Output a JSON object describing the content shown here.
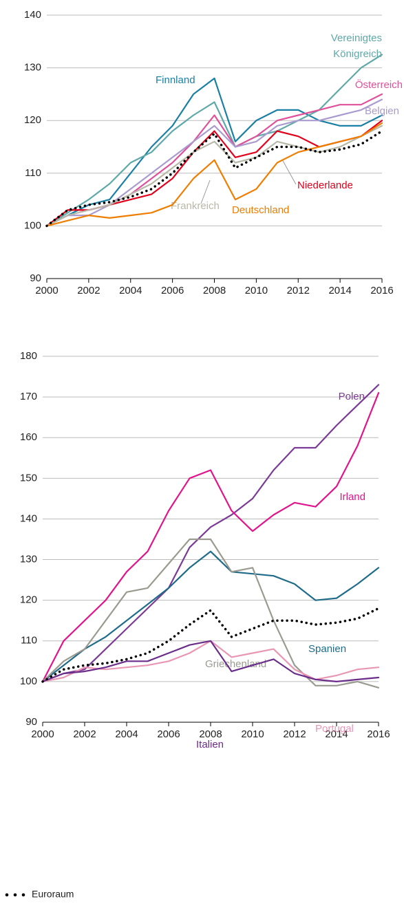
{
  "chart_data": [
    {
      "type": "line",
      "x": [
        2000,
        2001,
        2002,
        2003,
        2004,
        2005,
        2006,
        2007,
        2008,
        2009,
        2010,
        2011,
        2012,
        2013,
        2014,
        2015,
        2016
      ],
      "xlim": [
        2000,
        2016
      ],
      "xticks": [
        2000,
        2002,
        2004,
        2006,
        2008,
        2010,
        2012,
        2014,
        2016
      ],
      "ylim": [
        90,
        140
      ],
      "yticks": [
        90,
        100,
        110,
        120,
        130,
        140
      ],
      "grid": true,
      "series": [
        {
          "name": "Finnland",
          "color": "#1a7fa5",
          "values": [
            100,
            102,
            104,
            105,
            110,
            115,
            119,
            125,
            128,
            116,
            120,
            122,
            122,
            120,
            119,
            119,
            121
          ]
        },
        {
          "name": "Vereinigtes Königreich",
          "color": "#5fa8a8",
          "values": [
            100,
            102.5,
            105,
            108,
            112,
            114,
            118,
            121,
            123.5,
            115,
            117,
            118,
            120,
            122,
            126,
            130,
            132.5
          ]
        },
        {
          "name": "Österreich",
          "color": "#e0509a",
          "values": [
            100,
            103,
            103,
            104,
            106,
            109,
            112,
            116,
            121,
            115,
            117,
            120,
            121,
            122,
            123,
            123,
            125
          ]
        },
        {
          "name": "Belgien",
          "color": "#a99bd0",
          "values": [
            100,
            102,
            102,
            104,
            107,
            110,
            113,
            116,
            119,
            115,
            116,
            119,
            120,
            120,
            121,
            122,
            124
          ]
        },
        {
          "name": "Niederlande",
          "color": "#e2001a",
          "values": [
            100,
            103,
            103,
            104,
            105,
            106,
            109,
            114,
            118,
            113,
            114,
            118,
            117,
            115,
            116,
            117,
            120
          ]
        },
        {
          "name": "Frankreich",
          "color": "#b8b8a8",
          "values": [
            100,
            102,
            103,
            104,
            106,
            108,
            111,
            114,
            116,
            112,
            113,
            116,
            115,
            114,
            115,
            117,
            119
          ]
        },
        {
          "name": "Deutschland",
          "color": "#ef7d00",
          "values": [
            100,
            101,
            102,
            101.5,
            102,
            102.5,
            104,
            109,
            112.5,
            105,
            107,
            112,
            114,
            115,
            116,
            117,
            119.5
          ]
        },
        {
          "name": "Euroraum",
          "color": "#000000",
          "dotted": true,
          "values": [
            100,
            103,
            104,
            104.5,
            105.5,
            107,
            110,
            114,
            117.5,
            111,
            113,
            115,
            115,
            114,
            114.5,
            115.5,
            118
          ]
        }
      ]
    },
    {
      "type": "line",
      "x": [
        2000,
        2001,
        2002,
        2003,
        2004,
        2005,
        2006,
        2007,
        2008,
        2009,
        2010,
        2011,
        2012,
        2013,
        2014,
        2015,
        2016
      ],
      "xlim": [
        2000,
        2016
      ],
      "xticks": [
        2000,
        2002,
        2004,
        2006,
        2008,
        2010,
        2012,
        2014,
        2016
      ],
      "ylim": [
        90,
        180
      ],
      "yticks": [
        90,
        100,
        110,
        120,
        130,
        140,
        150,
        160,
        170,
        180
      ],
      "grid": true,
      "series": [
        {
          "name": "Polen",
          "color": "#7b3a96",
          "values": [
            100,
            102,
            103,
            108,
            113,
            118,
            123,
            133,
            138,
            141,
            145,
            152,
            157.5,
            157.5,
            163,
            168,
            173
          ]
        },
        {
          "name": "Irland",
          "color": "#e0148c",
          "values": [
            100,
            110,
            115,
            120,
            127,
            132,
            142,
            150,
            152,
            142,
            137,
            141,
            144,
            143,
            148,
            158,
            171
          ]
        },
        {
          "name": "Spanien",
          "color": "#1f6b8a",
          "values": [
            100,
            104,
            108,
            111,
            115,
            119,
            123,
            128,
            132,
            127,
            126.5,
            126,
            124,
            120,
            120.5,
            124,
            128
          ]
        },
        {
          "name": "Griechenland",
          "color": "#9a9a8f",
          "values": [
            100,
            105,
            108,
            115,
            122,
            123,
            129,
            135,
            135,
            127,
            128,
            115,
            104,
            99,
            99,
            100,
            98.5
          ]
        },
        {
          "name": "Portugal",
          "color": "#e896b4",
          "values": [
            100,
            101,
            103.5,
            103,
            103.5,
            104,
            105,
            107,
            110,
            106,
            107,
            108,
            103,
            100.5,
            101.5,
            103,
            103.5
          ]
        },
        {
          "name": "Italien",
          "color": "#6b2d8a",
          "values": [
            100,
            102,
            102.5,
            103.5,
            105,
            105,
            107,
            109,
            110,
            102.5,
            104,
            105.5,
            102,
            100.5,
            100,
            100.5,
            101
          ]
        },
        {
          "color": "#000000",
          "dotted": true,
          "values": [
            100,
            103,
            104,
            104.5,
            105.5,
            107,
            110,
            114,
            117.5,
            111,
            113,
            115,
            115,
            114,
            114.5,
            115.5,
            118
          ]
        }
      ]
    }
  ]
}
